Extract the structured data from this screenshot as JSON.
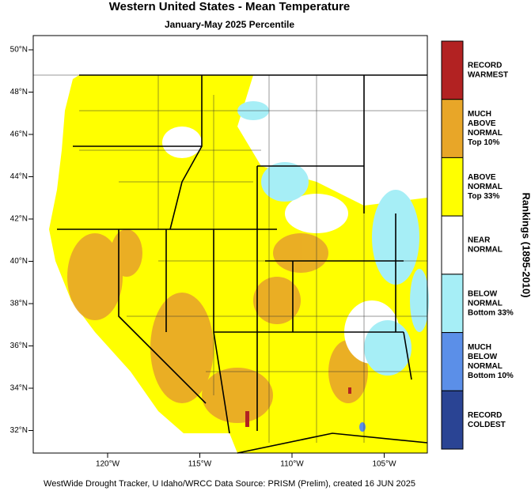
{
  "header": {
    "title": "Western United States - Mean Temperature",
    "subtitle": "January-May 2025 Percentile"
  },
  "map": {
    "lat_labels": [
      "50°N",
      "48°N",
      "46°N",
      "44°N",
      "42°N",
      "40°N",
      "38°N",
      "36°N",
      "34°N",
      "32°N"
    ],
    "lon_labels": [
      "120°W",
      "115°W",
      "110°W",
      "105°W"
    ]
  },
  "legend": {
    "title": "Rankings (1895-2010)",
    "items": [
      {
        "lines": [
          "RECORD",
          "WARMEST"
        ],
        "color": "#b22222"
      },
      {
        "lines": [
          "MUCH",
          "ABOVE",
          "NORMAL",
          "Top 10%"
        ],
        "color": "#e8a628"
      },
      {
        "lines": [
          "ABOVE",
          "NORMAL",
          "Top 33%"
        ],
        "color": "#ffff00"
      },
      {
        "lines": [
          "NEAR",
          "NORMAL"
        ],
        "color": "#ffffff"
      },
      {
        "lines": [
          "BELOW",
          "NORMAL",
          "Bottom 33%"
        ],
        "color": "#a6eef6"
      },
      {
        "lines": [
          "MUCH",
          "BELOW",
          "NORMAL",
          "Bottom 10%"
        ],
        "color": "#5b8fe8"
      },
      {
        "lines": [
          "RECORD",
          "COLDEST"
        ],
        "color": "#2a4494"
      }
    ]
  },
  "footer": "WestWide Drought Tracker, U Idaho/WRCC Data Source: PRISM (Prelim), created 16 JUN 2025"
}
